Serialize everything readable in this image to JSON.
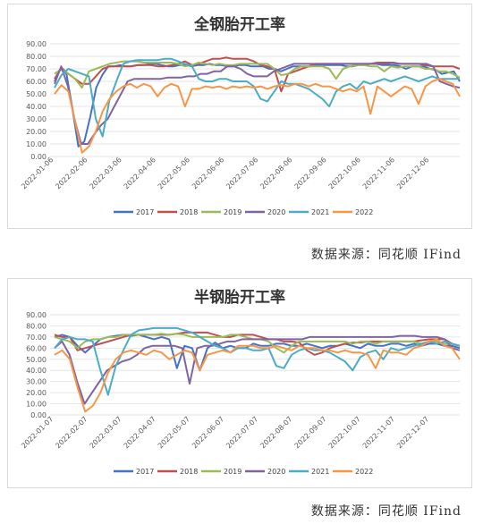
{
  "source_label": "数据来源：同花顺 IFind",
  "colors": {
    "2017": "#4472C4",
    "2018": "#C0504D",
    "2019": "#9BBB59",
    "2020": "#8064A2",
    "2021": "#4BACC6",
    "2022": "#F79646"
  },
  "chart_data": [
    {
      "type": "line",
      "title": "全钢胎开工率",
      "ylim": [
        0,
        90
      ],
      "yticks": [
        "0.00",
        "10.00",
        "20.00",
        "30.00",
        "40.00",
        "50.00",
        "60.00",
        "70.00",
        "80.00",
        "90.00"
      ],
      "xticks": [
        "2022-01-06",
        "2022-02-06",
        "2022-03-06",
        "2022-04-06",
        "2022-05-06",
        "2022-06-06",
        "2022-07-06",
        "2022-08-06",
        "2022-09-06",
        "2022-10-06",
        "2022-11-06",
        "2022-12-06"
      ],
      "grid": true,
      "legend": "bottom",
      "series": [
        {
          "name": "2017",
          "values": [
            60,
            70,
            66,
            38,
            8,
            12,
            32,
            55,
            65,
            72,
            72,
            73,
            72,
            72,
            73,
            73,
            74,
            74,
            73,
            72,
            72,
            73,
            73,
            72,
            73,
            73,
            74,
            73,
            73,
            72,
            72,
            73,
            73,
            72,
            72,
            72,
            70,
            70,
            68,
            70,
            72,
            72,
            72,
            72,
            73,
            73,
            73,
            73,
            73,
            72,
            72,
            73,
            73,
            74,
            74,
            73,
            73,
            73,
            72,
            70,
            72,
            72,
            72,
            70,
            69,
            66,
            67,
            68,
            60
          ]
        },
        {
          "name": "2018",
          "values": [
            62,
            71,
            66,
            62,
            58,
            58,
            64,
            70,
            72,
            72,
            72,
            72,
            73,
            73,
            73,
            72,
            72,
            73,
            74,
            76,
            73,
            74,
            76,
            78,
            78,
            79,
            78,
            78,
            78,
            76,
            73,
            72,
            70,
            52,
            66,
            68,
            70,
            72,
            74,
            74,
            74,
            74,
            74,
            74,
            74,
            74,
            74,
            75,
            75,
            75,
            74,
            74,
            74,
            74,
            73,
            72,
            72,
            72,
            72,
            70
          ]
        },
        {
          "name": "2019",
          "values": [
            66,
            70,
            66,
            62,
            55,
            68,
            70,
            72,
            74,
            75,
            76,
            76,
            76,
            75,
            75,
            75,
            75,
            75,
            74,
            72,
            73,
            75,
            74,
            73,
            74,
            73,
            73,
            74,
            74,
            74,
            74,
            74,
            70,
            65,
            66,
            70,
            72,
            72,
            72,
            72,
            70,
            62,
            70,
            72,
            73,
            73,
            72,
            72,
            68,
            72,
            71,
            72,
            72,
            72,
            70,
            70,
            68,
            68,
            66,
            63
          ]
        },
        {
          "name": "2020",
          "values": [
            58,
            72,
            56,
            30,
            10,
            10,
            18,
            25,
            30,
            40,
            50,
            60,
            62,
            62,
            62,
            62,
            62,
            63,
            63,
            63,
            64,
            64,
            66,
            66,
            68,
            68,
            72,
            72,
            70,
            66,
            64,
            64,
            64,
            68,
            70,
            72,
            74,
            74,
            74,
            74,
            74,
            74,
            74,
            74,
            74,
            74,
            74,
            74,
            74,
            74,
            74,
            75,
            74,
            74,
            74,
            74,
            74,
            72,
            60,
            58,
            56,
            55
          ]
        },
        {
          "name": "2021",
          "values": [
            55,
            65,
            70,
            68,
            66,
            64,
            30,
            16,
            45,
            60,
            74,
            76,
            77,
            77,
            77,
            77,
            78,
            78,
            76,
            74,
            72,
            62,
            60,
            60,
            62,
            62,
            60,
            60,
            60,
            56,
            46,
            44,
            52,
            60,
            58,
            58,
            56,
            54,
            50,
            46,
            40,
            52,
            56,
            58,
            54,
            60,
            58,
            60,
            62,
            60,
            62,
            64,
            62,
            60,
            62,
            64,
            62,
            62,
            62,
            62
          ]
        },
        {
          "name": "2022",
          "values": [
            50,
            57,
            52,
            28,
            3,
            8,
            20,
            36,
            46,
            52,
            56,
            58,
            55,
            58,
            56,
            48,
            55,
            58,
            56,
            40,
            54,
            54,
            56,
            55,
            56,
            54,
            56,
            55,
            56,
            55,
            56,
            54,
            56,
            57,
            56,
            58,
            58,
            56,
            58,
            56,
            56,
            54,
            52,
            54,
            52,
            56,
            34,
            56,
            52,
            48,
            52,
            56,
            54,
            42,
            56,
            60,
            62,
            60,
            58,
            48
          ]
        }
      ]
    },
    {
      "type": "line",
      "title": "半钢胎开工率",
      "ylim": [
        0,
        90
      ],
      "yticks": [
        "0.00",
        "10.00",
        "20.00",
        "30.00",
        "40.00",
        "50.00",
        "60.00",
        "70.00",
        "80.00",
        "90.00"
      ],
      "xticks": [
        "2022-01-07",
        "2022-02-07",
        "2022-03-07",
        "2022-04-07",
        "2022-05-07",
        "2022-06-07",
        "2022-07-07",
        "2022-08-07",
        "2022-09-07",
        "2022-10-07",
        "2022-11-07",
        "2022-12-07"
      ],
      "grid": true,
      "legend": "bottom",
      "series": [
        {
          "name": "2017",
          "values": [
            70,
            72,
            70,
            62,
            56,
            62,
            68,
            70,
            71,
            72,
            71,
            72,
            70,
            68,
            70,
            68,
            42,
            62,
            60,
            40,
            60,
            65,
            60,
            62,
            60,
            60,
            64,
            62,
            62,
            64,
            64,
            62,
            62,
            64,
            62,
            60,
            62,
            62,
            64,
            62,
            60,
            64,
            62,
            62,
            64,
            64,
            62,
            64,
            62,
            64,
            64,
            62,
            62,
            60
          ]
        },
        {
          "name": "2018",
          "values": [
            72,
            70,
            70,
            58,
            60,
            62,
            64,
            66,
            68,
            70,
            72,
            72,
            72,
            72,
            72,
            72,
            73,
            74,
            74,
            74,
            74,
            72,
            70,
            70,
            72,
            72,
            72,
            70,
            68,
            68,
            66,
            66,
            65,
            58,
            54,
            56,
            60,
            62,
            64,
            65,
            65,
            66,
            66,
            66,
            66,
            66,
            66,
            66,
            67,
            68,
            68,
            68,
            64,
            62
          ]
        },
        {
          "name": "2019",
          "values": [
            70,
            68,
            66,
            60,
            66,
            68,
            68,
            70,
            70,
            72,
            72,
            72,
            72,
            72,
            73,
            72,
            73,
            72,
            70,
            70,
            70,
            70,
            70,
            72,
            72,
            70,
            68,
            68,
            66,
            60,
            56,
            62,
            66,
            66,
            66,
            66,
            66,
            66,
            66,
            64,
            66,
            66,
            64,
            66,
            66,
            66,
            66,
            66,
            64,
            66,
            66,
            64,
            64,
            62
          ]
        },
        {
          "name": "2020",
          "values": [
            60,
            66,
            54,
            30,
            10,
            20,
            30,
            40,
            44,
            48,
            50,
            54,
            60,
            62,
            62,
            62,
            62,
            60,
            28,
            60,
            62,
            62,
            64,
            66,
            66,
            68,
            68,
            68,
            68,
            68,
            68,
            68,
            68,
            68,
            70,
            70,
            70,
            70,
            70,
            70,
            70,
            70,
            70,
            70,
            70,
            70,
            71,
            71,
            71,
            70,
            70,
            70,
            68,
            60,
            58
          ]
        },
        {
          "name": "2021",
          "values": [
            60,
            68,
            70,
            68,
            68,
            66,
            40,
            18,
            44,
            58,
            72,
            76,
            77,
            78,
            78,
            78,
            78,
            76,
            74,
            70,
            66,
            62,
            60,
            56,
            60,
            60,
            58,
            58,
            60,
            44,
            42,
            54,
            58,
            60,
            58,
            58,
            56,
            52,
            48,
            40,
            52,
            56,
            58,
            50,
            60,
            58,
            60,
            62,
            64,
            66,
            64,
            66,
            64,
            62
          ]
        },
        {
          "name": "2022",
          "values": [
            54,
            58,
            50,
            25,
            3,
            8,
            20,
            38,
            50,
            56,
            58,
            56,
            54,
            58,
            56,
            50,
            54,
            58,
            56,
            40,
            54,
            56,
            58,
            56,
            62,
            62,
            62,
            60,
            60,
            62,
            60,
            58,
            62,
            60,
            60,
            58,
            58,
            56,
            58,
            56,
            56,
            54,
            42,
            58,
            56,
            56,
            54,
            60,
            62,
            66,
            68,
            62,
            60,
            50
          ]
        }
      ]
    }
  ]
}
